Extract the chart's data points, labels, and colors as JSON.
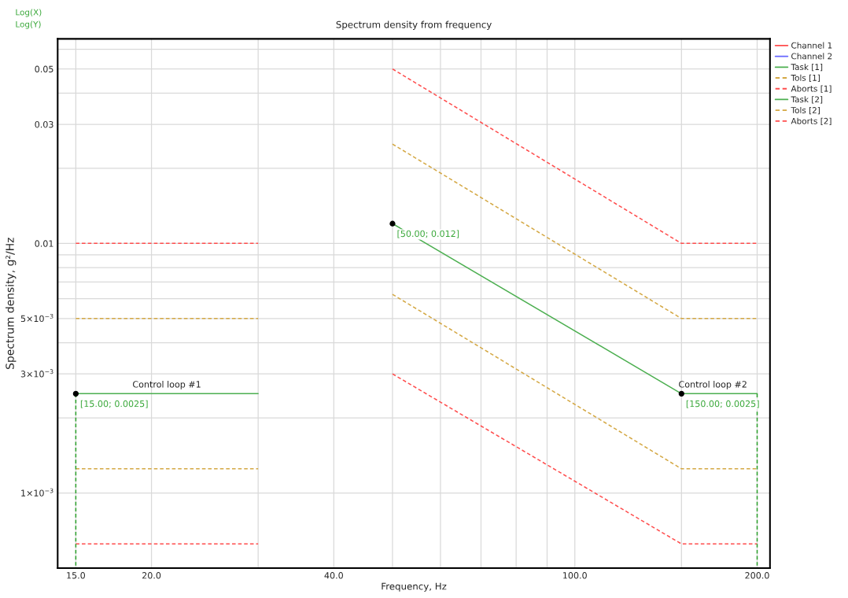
{
  "chart_data": {
    "type": "line",
    "title": "Spectrum density from frequency",
    "xlabel": "Frequency, Hz",
    "ylabel": "Spectrum density, g²/Hz",
    "log": "xy",
    "grid": true,
    "legend": "right",
    "xlim": [
      14,
      210
    ],
    "xticks": [
      {
        "value": 15,
        "label": "15.0"
      },
      {
        "value": 20,
        "label": "20.0"
      },
      {
        "value": 30,
        "label": null
      },
      {
        "value": 40,
        "label": "40.0"
      },
      {
        "value": 50,
        "label": null
      },
      {
        "value": 60,
        "label": null
      },
      {
        "value": 70,
        "label": null
      },
      {
        "value": 80,
        "label": null
      },
      {
        "value": 90,
        "label": null
      },
      {
        "value": 100,
        "label": "100.0"
      },
      {
        "value": 150,
        "label": null
      },
      {
        "value": 200,
        "label": "200.0"
      }
    ],
    "ylim": [
      0.0005,
      0.066
    ],
    "yticks": [
      {
        "value": 0.001,
        "label": "1×10$^{−3}$"
      },
      {
        "value": 0.002,
        "label": null
      },
      {
        "value": 0.003,
        "label": "3×10$^{−3}$"
      },
      {
        "value": 0.004,
        "label": null
      },
      {
        "value": 0.005,
        "label": "5×10$^{−3}$"
      },
      {
        "value": 0.006,
        "label": null
      },
      {
        "value": 0.007,
        "label": null
      },
      {
        "value": 0.008,
        "label": null
      },
      {
        "value": 0.009,
        "label": null
      },
      {
        "value": 0.01,
        "label": "0.01"
      },
      {
        "value": 0.02,
        "label": null
      },
      {
        "value": 0.03,
        "label": "0.03"
      },
      {
        "value": 0.04,
        "label": null
      },
      {
        "value": 0.05,
        "label": "0.05"
      },
      {
        "value": 0.06,
        "label": null
      }
    ],
    "series": [
      {
        "name": "Channel 1",
        "color": "#ff4d4d",
        "line_style": "solid"
      },
      {
        "name": "Channel 2",
        "color": "#6666ff",
        "line_style": "solid"
      },
      {
        "name": "Task [1]",
        "color": "#4caf50",
        "x": [
          15,
          30
        ],
        "values": [
          0.0025,
          0.0025
        ],
        "line_style": "solid"
      },
      {
        "name": "Tols [1]",
        "color": "#d4a844",
        "x": [
          15,
          30
        ],
        "values": [
          0.005,
          0.005
        ],
        "line_style": "dashed"
      },
      {
        "color": "#d4a844",
        "x": [
          15,
          30
        ],
        "values": [
          0.00125,
          0.00125
        ],
        "line_style": "dashed"
      },
      {
        "name": "Aborts [1]",
        "color": "#ff4d4d",
        "x": [
          15,
          30
        ],
        "values": [
          0.01,
          0.01
        ],
        "line_style": "dashed"
      },
      {
        "color": "#ff4d4d",
        "x": [
          15,
          30
        ],
        "values": [
          0.000625,
          0.000625
        ],
        "line_style": "dashed"
      },
      {
        "name": "Task [2]",
        "color": "#4caf50",
        "x": [
          50,
          150,
          200
        ],
        "values": [
          0.012,
          0.0025,
          0.0025
        ],
        "line_style": "solid"
      },
      {
        "name": "Tols [2]",
        "color": "#d4a844",
        "x": [
          50,
          150,
          200
        ],
        "values": [
          0.025,
          0.005,
          0.005
        ],
        "line_style": "dashed"
      },
      {
        "color": "#d4a844",
        "x": [
          50,
          150,
          200
        ],
        "values": [
          0.00625,
          0.00125,
          0.00125
        ],
        "line_style": "dashed"
      },
      {
        "name": "Aborts [2]",
        "color": "#ff4d4d",
        "x": [
          50,
          150,
          200
        ],
        "values": [
          0.05,
          0.01,
          0.01
        ],
        "line_style": "dashed"
      },
      {
        "color": "#ff4d4d",
        "x": [
          50,
          150,
          200
        ],
        "values": [
          0.003,
          0.000625,
          0.000625
        ],
        "line_style": "dashed"
      },
      {
        "color": "#2ca02c",
        "x": [
          15,
          15
        ],
        "values": [
          0.0025,
          0.0005
        ],
        "line_style": "dashed"
      },
      {
        "color": "#2ca02c",
        "x": [
          200,
          200
        ],
        "values": [
          0.0025,
          0.0005
        ],
        "line_style": "dashed"
      },
      {
        "type": "scatter",
        "color": "#000000",
        "marker": "circle",
        "x": [
          15,
          50,
          150
        ],
        "values": [
          0.0025,
          0.012,
          0.0025
        ],
        "value_labels": [
          "[15.00; 0.0025]",
          "[50.00; 0.012]",
          "[150.00; 0.0025]"
        ]
      }
    ],
    "annotations": [
      "Log(X)",
      "Log(Y)",
      {
        "text": "Control loop #1",
        "x": 21.2,
        "y": 0.0025
      },
      {
        "text": "Control loop #2",
        "x": 169,
        "y": 0.0025
      }
    ]
  }
}
